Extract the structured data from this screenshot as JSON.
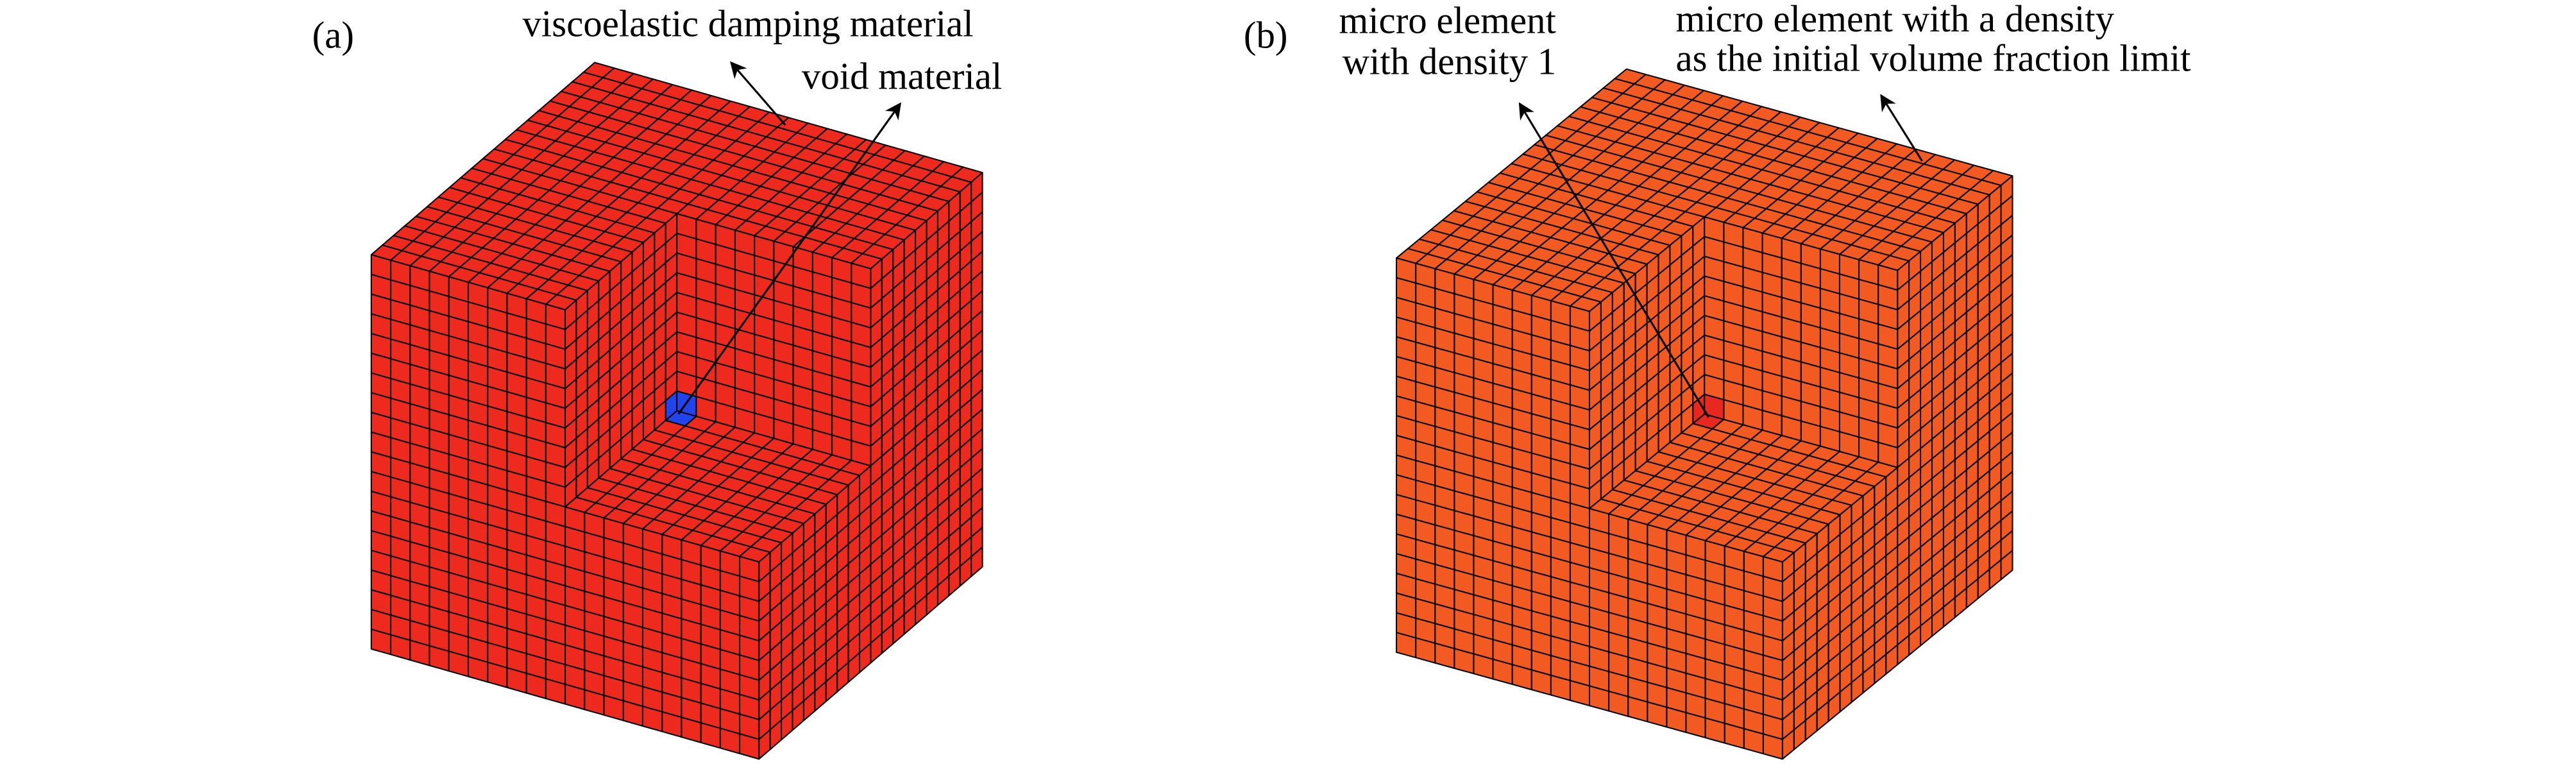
{
  "panels": [
    {
      "label": "(a)",
      "annotations": [
        "viscoelastic damping material",
        "void material"
      ]
    },
    {
      "label": "(b)",
      "annotations": [
        "micro element",
        "with density 1",
        "micro element with a density",
        "as the initial volume fraction limit"
      ]
    }
  ]
}
